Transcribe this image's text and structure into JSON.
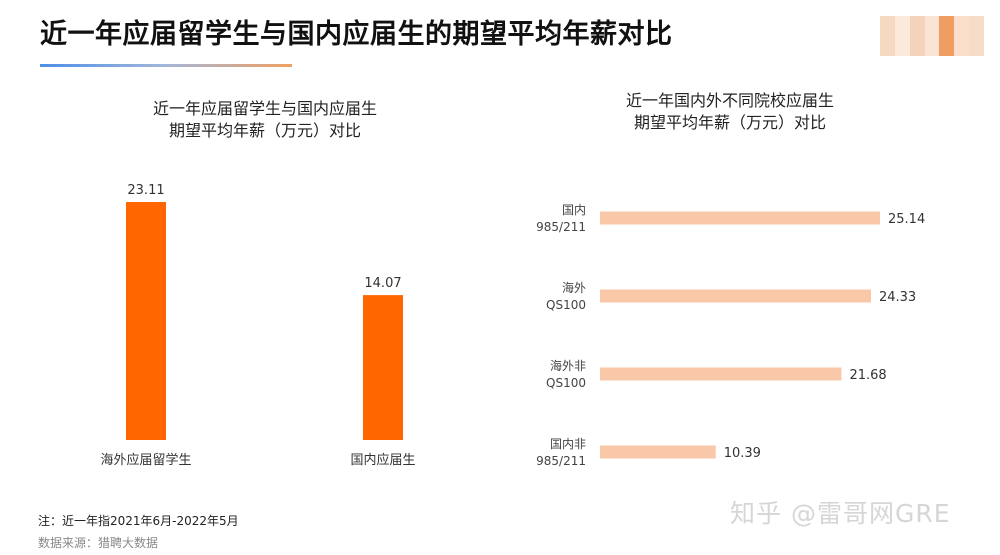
{
  "header": {
    "title": "近一年应届留学生与国内应届生的期望平均年薪对比"
  },
  "colors": {
    "bar_primary": "#ff6600",
    "bar_secondary": "#f8c8a8",
    "logo_blur": [
      "#f7d9c2",
      "#fbe9dc",
      "#f3d3bb",
      "#fae4d3",
      "#ef9d63",
      "#fadfcc",
      "#f7ddc8"
    ]
  },
  "chart_data": [
    {
      "type": "bar",
      "title": "近一年应届留学生与国内应届生\n期望平均年薪（万元）对比",
      "title_lines": [
        "近一年应届留学生与国内应届生",
        "期望平均年薪（万元）对比"
      ],
      "categories": [
        "海外应届留学生",
        "国内应届生"
      ],
      "values": [
        23.11,
        14.07
      ],
      "ylim": [
        0,
        25
      ],
      "grid": false
    },
    {
      "type": "bar",
      "orientation": "horizontal",
      "title": "近一年国内外不同院校应届生\n期望平均年薪（万元）对比",
      "title_lines": [
        "近一年国内外不同院校应届生",
        "期望平均年薪（万元）对比"
      ],
      "categories": [
        [
          "国内",
          "985/211"
        ],
        [
          "海外",
          "QS100"
        ],
        [
          "海外非",
          "QS100"
        ],
        [
          "国内非",
          "985/211"
        ]
      ],
      "values": [
        25.14,
        24.33,
        21.68,
        10.39
      ],
      "xlim": [
        0,
        25.14
      ],
      "grid": false
    }
  ],
  "footer": {
    "note": "注：近一年指2021年6月-2022年5月",
    "source": "数据来源：猎聘大数据",
    "watermark": "知乎 @雷哥网GRE"
  }
}
